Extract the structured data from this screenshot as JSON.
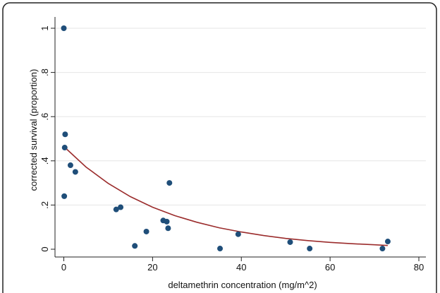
{
  "chart_data": {
    "type": "scatter",
    "title": "",
    "xlabel": "deltamethrin concentration (mg/m^2)",
    "ylabel": "corrected survival (proportion)",
    "xlim": [
      0,
      80
    ],
    "ylim": [
      0,
      1
    ],
    "x_ticks": [
      {
        "value": 0,
        "label": "0"
      },
      {
        "value": 20,
        "label": "20"
      },
      {
        "value": 40,
        "label": "40"
      },
      {
        "value": 60,
        "label": "60"
      },
      {
        "value": 80,
        "label": "80"
      }
    ],
    "y_ticks": [
      {
        "value": 0,
        "label": "0"
      },
      {
        "value": 0.2,
        "label": ".2"
      },
      {
        "value": 0.4,
        "label": ".4"
      },
      {
        "value": 0.6,
        "label": ".6"
      },
      {
        "value": 0.8,
        "label": ".8"
      },
      {
        "value": 1,
        "label": "1"
      }
    ],
    "grid": true,
    "points": [
      {
        "x": 0.0,
        "y": 1.0
      },
      {
        "x": 0.3,
        "y": 0.52
      },
      {
        "x": 0.2,
        "y": 0.46
      },
      {
        "x": 1.5,
        "y": 0.38
      },
      {
        "x": 2.6,
        "y": 0.35
      },
      {
        "x": 0.1,
        "y": 0.24
      },
      {
        "x": 11.8,
        "y": 0.18
      },
      {
        "x": 12.8,
        "y": 0.19
      },
      {
        "x": 16.0,
        "y": 0.015
      },
      {
        "x": 18.6,
        "y": 0.08
      },
      {
        "x": 22.4,
        "y": 0.13
      },
      {
        "x": 23.2,
        "y": 0.125
      },
      {
        "x": 23.5,
        "y": 0.095
      },
      {
        "x": 23.8,
        "y": 0.3
      },
      {
        "x": 35.2,
        "y": 0.003
      },
      {
        "x": 39.3,
        "y": 0.068
      },
      {
        "x": 51.0,
        "y": 0.032
      },
      {
        "x": 55.4,
        "y": 0.003
      },
      {
        "x": 71.8,
        "y": 0.003
      },
      {
        "x": 73.0,
        "y": 0.035
      }
    ],
    "fit": {
      "x": [
        0,
        5,
        10,
        15,
        20,
        25,
        30,
        35,
        40,
        45,
        50,
        55,
        60,
        65,
        70,
        73
      ],
      "y": [
        0.465,
        0.372,
        0.298,
        0.238,
        0.19,
        0.152,
        0.122,
        0.097,
        0.078,
        0.062,
        0.049,
        0.039,
        0.031,
        0.025,
        0.02,
        0.017
      ]
    },
    "colors": {
      "points": "#1f4e79",
      "fit_line": "#9b2c2c",
      "grid": "#e6e6e6",
      "axis": "#222222",
      "frame": "#222222"
    }
  }
}
